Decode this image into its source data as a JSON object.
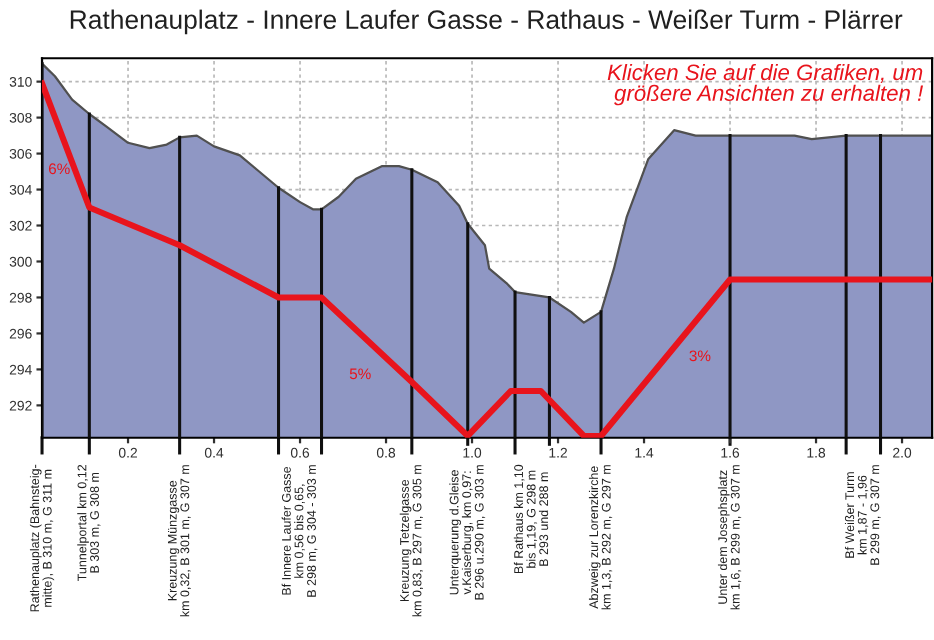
{
  "chart_data": {
    "type": "area",
    "title": "Rathenauplatz - Innere Laufer Gasse - Rathaus - Weißer Turm - Plärrer",
    "xlim": [
      0,
      2.07
    ],
    "ylim": [
      290.2,
      311.3
    ],
    "xticks": [
      0.2,
      0.4,
      0.6,
      0.8,
      {
        "value": 1.0,
        "label": "1.0"
      },
      1.2,
      1.4,
      1.6,
      1.8,
      {
        "value": 2.0,
        "label": "2.0"
      }
    ],
    "yticks": [
      292,
      294,
      296,
      298,
      300,
      302,
      304,
      306,
      308,
      310
    ],
    "grid": true,
    "series": [
      {
        "color": "#8f97c4",
        "x": [
          0.0,
          0.03,
          0.07,
          0.11,
          0.15,
          0.2,
          0.25,
          0.29,
          0.32,
          0.36,
          0.4,
          0.46,
          0.5,
          0.55,
          0.6,
          0.63,
          0.65,
          0.69,
          0.73,
          0.79,
          0.83,
          0.86,
          0.92,
          0.97,
          0.99,
          1.03,
          1.04,
          1.08,
          1.1,
          1.18,
          1.23,
          1.26,
          1.3,
          1.33,
          1.36,
          1.41,
          1.47,
          1.52,
          1.6,
          1.75,
          1.79,
          1.87,
          2.07
        ],
        "values": [
          311.0,
          310.3,
          309.0,
          308.2,
          307.5,
          306.6,
          306.3,
          306.5,
          306.9,
          307.0,
          306.4,
          305.9,
          305.1,
          304.1,
          303.3,
          302.9,
          302.9,
          303.6,
          304.6,
          305.3,
          305.3,
          305.1,
          304.4,
          303.1,
          302.1,
          300.9,
          299.6,
          298.8,
          298.3,
          298.0,
          297.2,
          296.6,
          297.2,
          299.6,
          302.5,
          305.7,
          307.3,
          307.0,
          307.0,
          307.0,
          306.8,
          307.0,
          307.0
        ]
      },
      {
        "type": "line",
        "color": "#e8141c",
        "x": [
          0.0,
          0.11,
          0.32,
          0.55,
          0.65,
          0.86,
          0.99,
          1.09,
          1.16,
          1.26,
          1.3,
          1.6,
          2.07
        ],
        "values": [
          309.9,
          303.0,
          300.9,
          298.0,
          298.0,
          293.3,
          290.3,
          292.8,
          292.8,
          290.3,
          290.3,
          299.0,
          299.0
        ]
      }
    ],
    "ref_lines": [
      {
        "axis": "x",
        "value": 0.0,
        "label": "Rathenauplatz (Bahnsteig-\nmitte), B 310 m, G 311 m"
      },
      {
        "axis": "x",
        "value": 0.11,
        "label": "Tunnelportal km 0,12\nB 303 m, G 308 m"
      },
      {
        "axis": "x",
        "value": 0.32,
        "label": "Kreuzung Münzgasse\nkm 0,32, B 301 m, G 307 m"
      },
      {
        "axis": "x",
        "value": 0.55,
        "label": "Bf Innere Laufer Gasse\nkm 0,56 bis 0,65,\nB 298 m, G 304 - 303 m"
      },
      {
        "axis": "x",
        "value": 0.65,
        "label": null
      },
      {
        "axis": "x",
        "value": 0.86,
        "label": "Kreuzung Tetzelgasse\nkm 0,83, B 297 m, G 305 m"
      },
      {
        "axis": "x",
        "value": 0.99,
        "label": "Unterquerung d.Gleise\nv.Kaiserburg, km 0,97:\nB 296 u.290 m, G 303 m"
      },
      {
        "axis": "x",
        "value": 1.1,
        "label": "Bf Rathaus km 1,10\nbis 1,19, G 298 m\nB 293 und 288 m"
      },
      {
        "axis": "x",
        "value": 1.18,
        "label": null
      },
      {
        "axis": "x",
        "value": 1.3,
        "label": "Abzweig zur Lorenzkirche\nkm 1,3, B 292 m, G 297 m"
      },
      {
        "axis": "x",
        "value": 1.6,
        "label": "Unter dem Josephsplatz\nkm 1,6, B 299 m, G 307 m"
      },
      {
        "axis": "x",
        "value": 1.87,
        "label": "Bf Weißer Turm\nkm 1,87 - 1,96\nB 299 m, G 307 m"
      },
      {
        "axis": "x",
        "value": 1.95,
        "label": null
      }
    ],
    "annotations": [
      {
        "text": "6%",
        "x": 0.04,
        "y": 307.4
      },
      {
        "text": "5%",
        "x": 0.74,
        "y": 296.0
      },
      {
        "text": "3%",
        "x": 1.53,
        "y": 297.0
      },
      "Klicken Sie auf die Grafiken, um\ngrößere Ansichten zu erhalten !"
    ]
  }
}
